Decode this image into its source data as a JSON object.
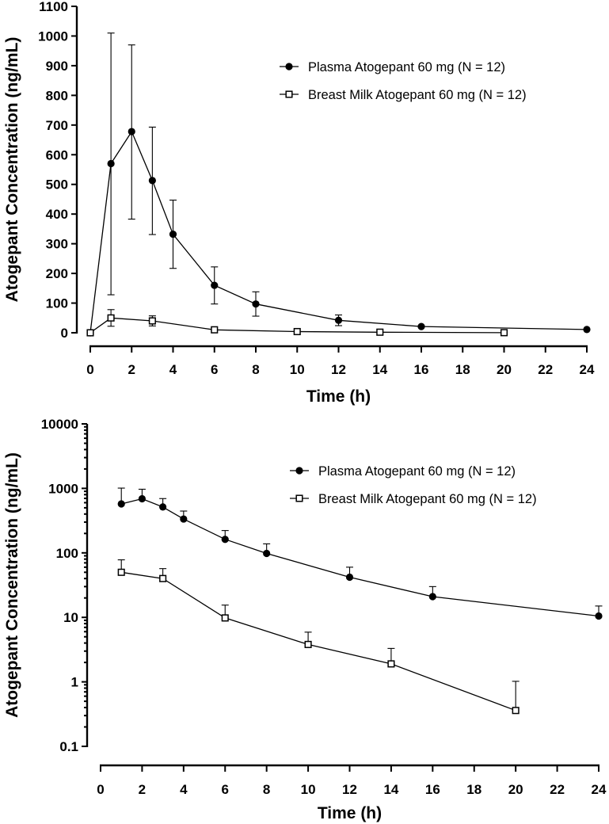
{
  "chart_data": [
    {
      "type": "line",
      "yscale": "linear",
      "xlabel": "Time (h)",
      "ylabel": "Atogepant Concentration (ng/mL)",
      "xlim": [
        0,
        24
      ],
      "ylim": [
        0,
        1100
      ],
      "x_ticks": [
        "0",
        "2",
        "4",
        "6",
        "8",
        "10",
        "12",
        "14",
        "16",
        "18",
        "20",
        "22",
        "24"
      ],
      "y_ticks": [
        "0",
        "100",
        "200",
        "300",
        "400",
        "500",
        "600",
        "700",
        "800",
        "900",
        "1000",
        "1100"
      ],
      "grid": false,
      "legend_position": "top-right",
      "series": [
        {
          "name": "Plasma Atogepant 60 mg (N = 12)",
          "marker": "filled-circle",
          "x": [
            0,
            1,
            2,
            3,
            4,
            6,
            8,
            12,
            16,
            24
          ],
          "y": [
            0,
            570,
            678,
            513,
            332,
            160,
            97,
            42,
            21,
            11
          ],
          "err_up": [
            0,
            1010,
            970,
            693,
            447,
            222,
            138,
            60,
            0,
            0
          ],
          "err_low": [
            0,
            128,
            383,
            331,
            217,
            97,
            56,
            24,
            0,
            0
          ]
        },
        {
          "name": "Breast Milk Atogepant 60 mg (N = 12)",
          "marker": "open-square",
          "x": [
            0,
            1,
            3,
            6,
            10,
            14,
            20
          ],
          "y": [
            0,
            50,
            40,
            10,
            4,
            2,
            0.4
          ],
          "err_up": [
            0,
            78,
            57,
            0,
            0,
            0,
            0
          ],
          "err_low": [
            0,
            22,
            23,
            0,
            0,
            0,
            0
          ]
        }
      ]
    },
    {
      "type": "line",
      "yscale": "log",
      "xlabel": "Time (h)",
      "ylabel": "Atogepant Concentration (ng/mL)",
      "xlim": [
        0,
        24
      ],
      "ylim": [
        0.1,
        10000
      ],
      "x_ticks": [
        "0",
        "2",
        "4",
        "6",
        "8",
        "10",
        "12",
        "14",
        "16",
        "18",
        "20",
        "22",
        "24"
      ],
      "y_ticks": [
        "0.1",
        "1",
        "10",
        "100",
        "1000",
        "10000"
      ],
      "grid": false,
      "legend_position": "top-right",
      "series": [
        {
          "name": "Plasma Atogepant 60 mg (N = 12)",
          "marker": "filled-circle",
          "x": [
            1,
            2,
            3,
            4,
            6,
            8,
            12,
            16,
            24
          ],
          "y": [
            575,
            690,
            515,
            335,
            162,
            98,
            42,
            21,
            10.5
          ],
          "err_up": [
            1010,
            970,
            695,
            445,
            222,
            138,
            60,
            30,
            15
          ]
        },
        {
          "name": "Breast Milk Atogepant 60 mg (N = 12)",
          "marker": "open-square",
          "x": [
            1,
            3,
            6,
            10,
            14,
            20
          ],
          "y": [
            50,
            40,
            9.8,
            3.8,
            1.9,
            0.36
          ],
          "err_up": [
            78,
            57,
            15.5,
            5.9,
            3.3,
            1.02
          ]
        }
      ]
    }
  ]
}
